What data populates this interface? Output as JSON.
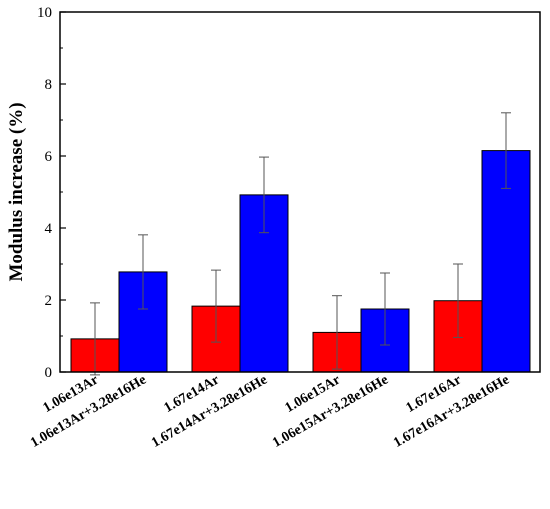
{
  "chart_data": {
    "type": "bar",
    "title": "",
    "xlabel": "",
    "ylabel": "Modulus increase (%)",
    "ylim": [
      0,
      10
    ],
    "yticks": [
      0,
      2,
      4,
      6,
      8,
      10
    ],
    "grid": false,
    "legend": "none",
    "bars": [
      {
        "label": "1.06e13Ar",
        "value": 0.92,
        "error": 1.0,
        "color": "#ff0000"
      },
      {
        "label": "1.06e13Ar+3.28e16He",
        "value": 2.78,
        "error": 1.03,
        "color": "#0000ff"
      },
      {
        "label": "1.67e14Ar",
        "value": 1.83,
        "error": 1.0,
        "color": "#ff0000"
      },
      {
        "label": "1.67e14Ar+3.28e16He",
        "value": 4.92,
        "error": 1.05,
        "color": "#0000ff"
      },
      {
        "label": "1.06e15Ar",
        "value": 1.1,
        "error": 1.02,
        "color": "#ff0000"
      },
      {
        "label": "1.06e15Ar+3.28e16He",
        "value": 1.75,
        "error": 1.0,
        "color": "#0000ff"
      },
      {
        "label": "1.67e16Ar",
        "value": 1.98,
        "error": 1.02,
        "color": "#ff0000"
      },
      {
        "label": "1.67e16Ar+3.28e16He",
        "value": 6.15,
        "error": 1.05,
        "color": "#0000ff"
      }
    ]
  }
}
